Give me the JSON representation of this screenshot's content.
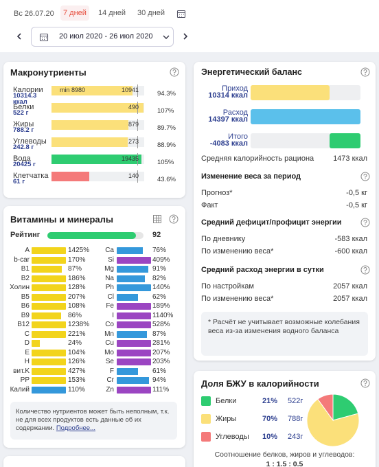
{
  "header": {
    "date": "Вс 26.07.20",
    "periods": [
      "7 дней",
      "14 дней",
      "30 дней"
    ],
    "active_period": 0,
    "range": "20 июл 2020 - 26 июл 2020"
  },
  "macros": {
    "title": "Макронутриенты",
    "min_label": "min 8980",
    "rows": [
      {
        "name": "Калории",
        "amount": "10314.3 ккал",
        "norm": 10941,
        "percent": 94.3,
        "percent_label": "94.3%",
        "color": "#fbe07a"
      },
      {
        "name": "Белки",
        "amount": "522 г",
        "norm": 490,
        "percent": 107,
        "percent_label": "107%",
        "color": "#fbe07a"
      },
      {
        "name": "Жиры",
        "amount": "788.2 г",
        "norm": 879,
        "percent": 89.7,
        "percent_label": "89.7%",
        "color": "#fbe07a"
      },
      {
        "name": "Углеводы",
        "amount": "242.8 г",
        "norm": 273,
        "percent": 88.9,
        "percent_label": "88.9%",
        "color": "#fbe07a"
      },
      {
        "name": "Вода",
        "amount": "20425 г",
        "norm": 19435,
        "percent": 105,
        "percent_label": "105%",
        "color": "#2ecc71"
      },
      {
        "name": "Клетчатка",
        "amount": "61 г",
        "norm": 140,
        "percent": 43.6,
        "percent_label": "43.6%",
        "color": "#f47a7a"
      }
    ]
  },
  "vitamins": {
    "title": "Витамины и минералы",
    "rating_label": "Рейтинг",
    "rating": 92,
    "columns": [
      [
        {
          "name": "A",
          "value": 1425,
          "label": "1425%",
          "color": "#f2d41c"
        },
        {
          "name": "b-car",
          "value": 170,
          "label": "170%",
          "color": "#f2d41c"
        },
        {
          "name": "B1",
          "value": 87,
          "label": "87%",
          "color": "#f2d41c"
        },
        {
          "name": "B2",
          "value": 186,
          "label": "186%",
          "color": "#f2d41c"
        },
        {
          "name": "Холин",
          "value": 128,
          "label": "128%",
          "color": "#f2d41c"
        },
        {
          "name": "B5",
          "value": 207,
          "label": "207%",
          "color": "#f2d41c"
        },
        {
          "name": "B6",
          "value": 108,
          "label": "108%",
          "color": "#f2d41c"
        },
        {
          "name": "B9",
          "value": 86,
          "label": "86%",
          "color": "#f2d41c"
        },
        {
          "name": "B12",
          "value": 1238,
          "label": "1238%",
          "color": "#f2d41c"
        },
        {
          "name": "C",
          "value": 221,
          "label": "221%",
          "color": "#f2d41c"
        },
        {
          "name": "D",
          "value": 24,
          "label": "24%",
          "color": "#f2d41c"
        },
        {
          "name": "E",
          "value": 104,
          "label": "104%",
          "color": "#f2d41c"
        },
        {
          "name": "H",
          "value": 126,
          "label": "126%",
          "color": "#f2d41c"
        },
        {
          "name": "вит.K",
          "value": 427,
          "label": "427%",
          "color": "#f2d41c"
        },
        {
          "name": "PP",
          "value": 153,
          "label": "153%",
          "color": "#f2d41c"
        },
        {
          "name": "Калий",
          "value": 110,
          "label": "110%",
          "color": "#3498db"
        }
      ],
      [
        {
          "name": "Ca",
          "value": 76,
          "label": "76%",
          "color": "#3498db"
        },
        {
          "name": "Si",
          "value": 409,
          "label": "409%",
          "color": "#9b45c2"
        },
        {
          "name": "Mg",
          "value": 91,
          "label": "91%",
          "color": "#3498db"
        },
        {
          "name": "Na",
          "value": 82,
          "label": "82%",
          "color": "#3498db"
        },
        {
          "name": "Ph",
          "value": 140,
          "label": "140%",
          "color": "#3498db"
        },
        {
          "name": "Cl",
          "value": 62,
          "label": "62%",
          "color": "#3498db"
        },
        {
          "name": "Fe",
          "value": 189,
          "label": "189%",
          "color": "#9b45c2"
        },
        {
          "name": "I",
          "value": 1140,
          "label": "1140%",
          "color": "#9b45c2"
        },
        {
          "name": "Co",
          "value": 528,
          "label": "528%",
          "color": "#9b45c2"
        },
        {
          "name": "Mn",
          "value": 87,
          "label": "87%",
          "color": "#3498db"
        },
        {
          "name": "Cu",
          "value": 281,
          "label": "281%",
          "color": "#9b45c2"
        },
        {
          "name": "Mo",
          "value": 207,
          "label": "207%",
          "color": "#9b45c2"
        },
        {
          "name": "Se",
          "value": 203,
          "label": "203%",
          "color": "#9b45c2"
        },
        {
          "name": "F",
          "value": 61,
          "label": "61%",
          "color": "#3498db"
        },
        {
          "name": "Cr",
          "value": 94,
          "label": "94%",
          "color": "#3498db"
        },
        {
          "name": "Zn",
          "value": 111,
          "label": "111%",
          "color": "#9b45c2"
        }
      ]
    ],
    "note": "Количество нутриентов может быть неполным, т.к. не для всех продуктов есть данные об их содержании.",
    "link": "Подробнее..."
  },
  "energy": {
    "title": "Энергетический баланс",
    "bars": [
      {
        "name": "Приход",
        "value": 10314,
        "label": "10314 ккал",
        "color": "#fbe07a"
      },
      {
        "name": "Расход",
        "value": 14397,
        "label": "14397 ккал",
        "color": "#5bc0eb"
      },
      {
        "name": "Итого",
        "value": -4083,
        "label": "-4083 ккал",
        "color": "#2ecc71"
      }
    ],
    "avg_label": "Средняя калорийность рациона",
    "avg_value": "1473 ккал",
    "sections": [
      {
        "title": "Изменение веса за период",
        "rows": [
          [
            "Прогноз*",
            "-0,5 кг"
          ],
          [
            "Факт",
            "-0,5 кг"
          ]
        ]
      },
      {
        "title": "Средний дефицит/профицит энергии",
        "rows": [
          [
            "По дневнику",
            "-583 ккал"
          ],
          [
            "По изменению веса*",
            "-600 ккал"
          ]
        ]
      },
      {
        "title": "Средний расход энергии в сутки",
        "rows": [
          [
            "По настройкам",
            "2057 ккал"
          ],
          [
            "По изменению веса*",
            "2057 ккал"
          ]
        ]
      }
    ],
    "note": "* Расчёт не учитывает возможные колебания веса из-за изменения водного баланса"
  },
  "bju": {
    "title": "Доля БЖУ в калорийности",
    "rows": [
      {
        "name": "Белки",
        "percent": 21,
        "percent_label": "21%",
        "amount": "522г",
        "color": "#2ecc71"
      },
      {
        "name": "Жиры",
        "percent": 70,
        "percent_label": "70%",
        "amount": "788г",
        "color": "#fbe07a"
      },
      {
        "name": "Углеводы",
        "percent": 10,
        "percent_label": "10%",
        "amount": "243г",
        "color": "#f47a7a"
      }
    ],
    "ratio_label": "Соотношение белков, жиров и углеводов:",
    "ratio": "1 : 1.5 : 0.5"
  }
}
